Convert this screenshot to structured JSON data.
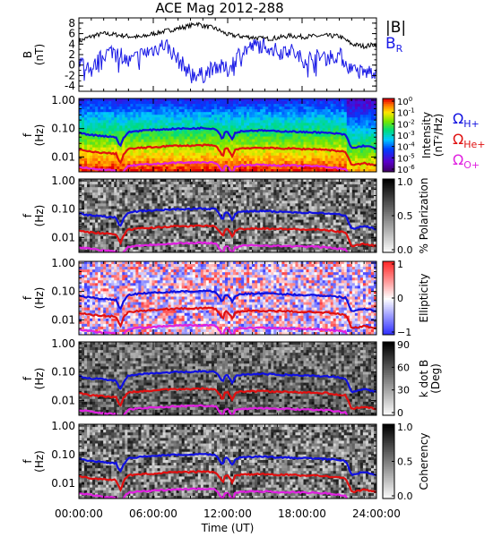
{
  "title": "ACE Mag 2012-288",
  "colors": {
    "H": "#1010e0",
    "He": "#e01010",
    "O": "#e020e0",
    "B": "#000000",
    "BR": "#1a1ae6"
  },
  "chart_data": [
    {
      "type": "line",
      "id": "mag",
      "ylabel": "B",
      "ylabel_unit": "(nT)",
      "yticks": [
        "-4",
        "-2",
        "0",
        "2",
        "4",
        "6",
        "8"
      ],
      "ylim": [
        -5,
        9
      ],
      "xlim_hours": [
        0,
        24
      ],
      "legend": [
        {
          "label": "|B|",
          "color_key": "B"
        },
        {
          "label": "B",
          "sub": "R",
          "color_key": "BR"
        }
      ],
      "series": [
        {
          "name": "|B|",
          "x_hours": [
            0,
            1,
            2,
            3,
            4,
            5,
            6,
            7,
            8,
            9,
            9.5,
            10,
            11,
            12,
            13,
            14,
            15,
            16,
            17,
            18,
            19,
            20,
            21,
            21.5,
            22,
            23,
            24
          ],
          "values": [
            4.5,
            5.5,
            6,
            5.8,
            5.5,
            5.3,
            6,
            6.5,
            7,
            7.5,
            8,
            7.5,
            7,
            5.8,
            5.5,
            5.3,
            5,
            5.2,
            5.6,
            5.4,
            5.5,
            5.6,
            5.5,
            4.8,
            4,
            3.6,
            4
          ]
        },
        {
          "name": "B_R",
          "x_hours": [
            0,
            1,
            2,
            3,
            4,
            5,
            6,
            7,
            8,
            9,
            10,
            11,
            12,
            13,
            14,
            15,
            16,
            17,
            18,
            19,
            20,
            21,
            22,
            23,
            24
          ],
          "values": [
            1,
            -1,
            2,
            3,
            0.5,
            2,
            3,
            4,
            1,
            -1.5,
            -2,
            0,
            -1,
            2.5,
            3.5,
            4,
            2.5,
            3,
            1,
            1.5,
            1.5,
            2,
            -1,
            -1.5,
            -1
          ]
        }
      ]
    },
    {
      "type": "heatmap",
      "id": "intensity",
      "ylabel": "f",
      "ylabel_unit": "(Hz)",
      "yticks": [
        "1.00",
        "0.10",
        "0.01"
      ],
      "colorbar_label": "Intensity",
      "colorbar_unit": "(nT²/Hz)",
      "colorbar_ticks": [
        {
          "m": "10",
          "e": "0"
        },
        {
          "m": "10",
          "e": "-1"
        },
        {
          "m": "10",
          "e": "-2"
        },
        {
          "m": "10",
          "e": "-3"
        },
        {
          "m": "10",
          "e": "-4"
        },
        {
          "m": "10",
          "e": "-5"
        },
        {
          "m": "10",
          "e": "-6"
        }
      ],
      "side_legend": [
        {
          "label": "Ω",
          "sub": "H+",
          "color_key": "H"
        },
        {
          "label": "Ω",
          "sub": "He+",
          "color_key": "He"
        },
        {
          "label": "Ω",
          "sub": "O+",
          "color_key": "O"
        }
      ]
    },
    {
      "type": "heatmap",
      "id": "polarization",
      "ylabel": "f",
      "ylabel_unit": "(Hz)",
      "yticks": [
        "1.00",
        "0.10",
        "0.01"
      ],
      "colorbar_label": "% Polarization",
      "colorbar_ticks": [
        "1.0",
        "0.5",
        "0.0"
      ]
    },
    {
      "type": "heatmap",
      "id": "ellipticity",
      "ylabel": "f",
      "ylabel_unit": "(Hz)",
      "yticks": [
        "1.00",
        "0.10",
        "0.01"
      ],
      "colorbar_label": "Ellipticity",
      "colorbar_ticks": [
        "1",
        "0",
        "−1"
      ]
    },
    {
      "type": "heatmap",
      "id": "kdotb",
      "ylabel": "f",
      "ylabel_unit": "(Hz)",
      "yticks": [
        "1.00",
        "0.10",
        "0.01"
      ],
      "colorbar_label": "k dot B",
      "colorbar_unit": "(Deg)",
      "colorbar_ticks": [
        "90",
        "60",
        "30",
        "0"
      ]
    },
    {
      "type": "heatmap",
      "id": "coherency",
      "ylabel": "f",
      "ylabel_unit": "(Hz)",
      "yticks": [
        "1.00",
        "0.10",
        "0.01"
      ],
      "colorbar_label": "Coherency",
      "colorbar_ticks": [
        "1.0",
        "0.5",
        "0.0"
      ]
    }
  ],
  "gyrofrequency_curves": {
    "x_hours": [
      0,
      1,
      2,
      3,
      3.2,
      3.4,
      3.6,
      4,
      5,
      6,
      7,
      8,
      9,
      10,
      11,
      11.4,
      11.6,
      11.8,
      12,
      12.4,
      12.6,
      13,
      14,
      15,
      16,
      17,
      18,
      19,
      20,
      21,
      21.5,
      21.8,
      22,
      23,
      24
    ],
    "H": [
      0.07,
      0.06,
      0.055,
      0.05,
      0.03,
      0.025,
      0.045,
      0.075,
      0.085,
      0.09,
      0.095,
      0.1,
      0.1,
      0.105,
      0.1,
      0.06,
      0.04,
      0.08,
      0.075,
      0.04,
      0.07,
      0.08,
      0.085,
      0.085,
      0.08,
      0.08,
      0.075,
      0.075,
      0.07,
      0.065,
      0.06,
      0.03,
      0.02,
      0.025,
      0.02
    ],
    "He": [
      0.018,
      0.015,
      0.014,
      0.013,
      0.008,
      0.006,
      0.012,
      0.019,
      0.021,
      0.022,
      0.024,
      0.025,
      0.025,
      0.026,
      0.025,
      0.015,
      0.01,
      0.02,
      0.019,
      0.01,
      0.018,
      0.02,
      0.021,
      0.021,
      0.02,
      0.02,
      0.019,
      0.019,
      0.018,
      0.016,
      0.015,
      0.008,
      0.005,
      0.006,
      0.005
    ],
    "O": [
      0.0045,
      0.004,
      0.0035,
      0.0033,
      0.002,
      0.0016,
      0.003,
      0.0048,
      0.0053,
      0.0056,
      0.006,
      0.0063,
      0.0063,
      0.0065,
      0.0063,
      0.0038,
      0.0025,
      0.005,
      0.0048,
      0.0025,
      0.0045,
      0.005,
      0.0053,
      0.0053,
      0.005,
      0.005,
      0.0048,
      0.0048,
      0.0045,
      0.004,
      0.0038,
      0.002,
      0.0013,
      0.0016,
      0.0013
    ]
  },
  "xaxis": {
    "ticks": [
      "00:00:00",
      "06:00:00",
      "12:00:00",
      "18:00:00",
      "24:00:00"
    ],
    "label": "Time (UT)"
  }
}
